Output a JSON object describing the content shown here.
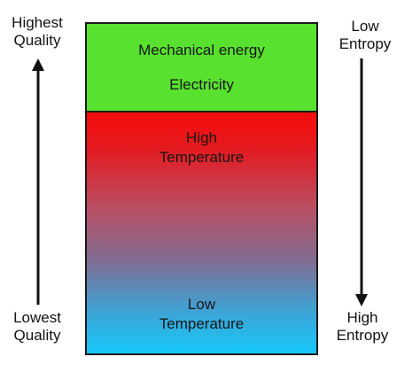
{
  "left_scale": {
    "top_label": [
      "Highest",
      "Quality"
    ],
    "bottom_label": [
      "Lowest",
      "Quality"
    ],
    "arrow_direction": "up"
  },
  "right_scale": {
    "top_label": [
      "Low",
      "Entropy"
    ],
    "bottom_label": [
      "High",
      "Entropy"
    ],
    "arrow_direction": "down"
  },
  "box": {
    "top_section": {
      "lines": [
        "Mechanical energy",
        "Electricity"
      ],
      "color": "#58e12e"
    },
    "gradient_section": {
      "top_lines": [
        "High",
        "Temperature"
      ],
      "bottom_lines": [
        "Low",
        "Temperature"
      ],
      "top_color": "#f60c0c",
      "bottom_color": "#16c8f9"
    },
    "border_color": "#1a1a1a"
  }
}
